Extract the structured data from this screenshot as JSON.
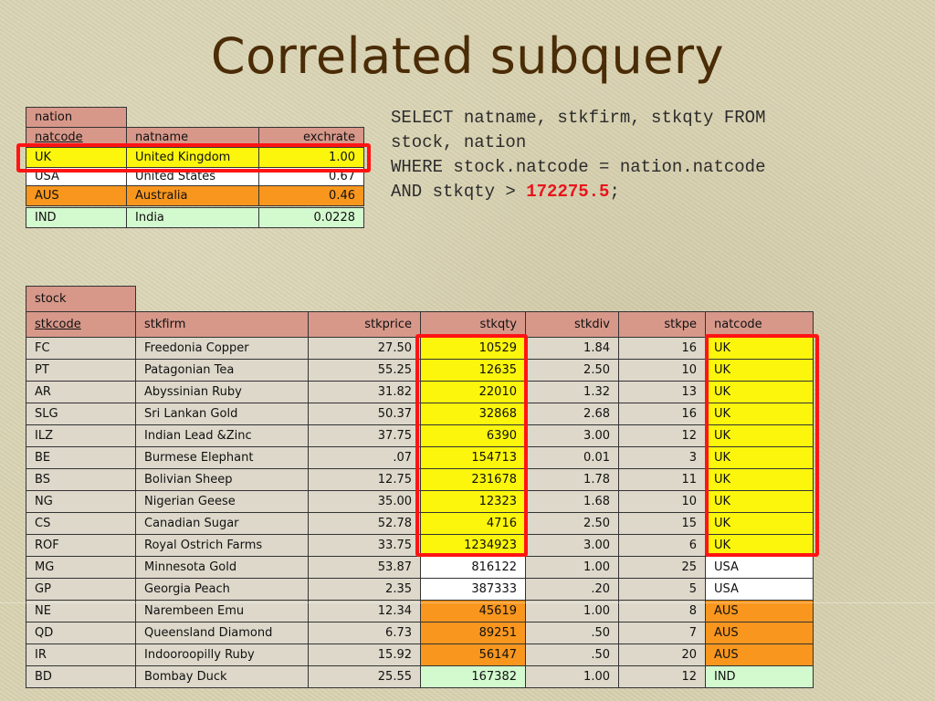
{
  "title": "Correlated subquery",
  "sql": {
    "line1": "SELECT natname, stkfirm, stkqty FROM",
    "line2": "stock, nation",
    "line3": "WHERE stock.natcode = nation.natcode",
    "line4_prefix": "AND stkqty > ",
    "line4_value": "172275.5",
    "line4_suffix": ";"
  },
  "nation_table": {
    "name": "nation",
    "columns": [
      "natcode",
      "natname",
      "exchrate"
    ],
    "rows": [
      {
        "natcode": "UK",
        "natname": "United Kingdom",
        "exchrate": "1.00"
      },
      {
        "natcode": "USA",
        "natname": "United States",
        "exchrate": "0.67"
      },
      {
        "natcode": "AUS",
        "natname": "Australia",
        "exchrate": "0.46"
      },
      {
        "natcode": "IND",
        "natname": "India",
        "exchrate": "0.0228"
      }
    ]
  },
  "stock_table": {
    "name": "stock",
    "columns": [
      "stkcode",
      "stkfirm",
      "stkprice",
      "stkqty",
      "stkdiv",
      "stkpe",
      "natcode"
    ],
    "rows": [
      {
        "stkcode": "FC",
        "stkfirm": "Freedonia Copper",
        "stkprice": "27.50",
        "stkqty": "10529",
        "stkdiv": "1.84",
        "stkpe": "16",
        "natcode": "UK"
      },
      {
        "stkcode": "PT",
        "stkfirm": "Patagonian Tea",
        "stkprice": "55.25",
        "stkqty": "12635",
        "stkdiv": "2.50",
        "stkpe": "10",
        "natcode": "UK"
      },
      {
        "stkcode": "AR",
        "stkfirm": "Abyssinian Ruby",
        "stkprice": "31.82",
        "stkqty": "22010",
        "stkdiv": "1.32",
        "stkpe": "13",
        "natcode": "UK"
      },
      {
        "stkcode": "SLG",
        "stkfirm": "Sri Lankan Gold",
        "stkprice": "50.37",
        "stkqty": "32868",
        "stkdiv": "2.68",
        "stkpe": "16",
        "natcode": "UK"
      },
      {
        "stkcode": "ILZ",
        "stkfirm": "Indian Lead &Zinc",
        "stkprice": "37.75",
        "stkqty": "6390",
        "stkdiv": "3.00",
        "stkpe": "12",
        "natcode": "UK"
      },
      {
        "stkcode": "BE",
        "stkfirm": "Burmese Elephant",
        "stkprice": ".07",
        "stkqty": "154713",
        "stkdiv": "0.01",
        "stkpe": "3",
        "natcode": "UK"
      },
      {
        "stkcode": "BS",
        "stkfirm": "Bolivian Sheep",
        "stkprice": "12.75",
        "stkqty": "231678",
        "stkdiv": "1.78",
        "stkpe": "11",
        "natcode": "UK"
      },
      {
        "stkcode": "NG",
        "stkfirm": "Nigerian Geese",
        "stkprice": "35.00",
        "stkqty": "12323",
        "stkdiv": "1.68",
        "stkpe": "10",
        "natcode": "UK"
      },
      {
        "stkcode": "CS",
        "stkfirm": "Canadian Sugar",
        "stkprice": "52.78",
        "stkqty": "4716",
        "stkdiv": "2.50",
        "stkpe": "15",
        "natcode": "UK"
      },
      {
        "stkcode": "ROF",
        "stkfirm": "Royal Ostrich Farms",
        "stkprice": "33.75",
        "stkqty": "1234923",
        "stkdiv": "3.00",
        "stkpe": "6",
        "natcode": "UK"
      },
      {
        "stkcode": "MG",
        "stkfirm": "Minnesota Gold",
        "stkprice": "53.87",
        "stkqty": "816122",
        "stkdiv": "1.00",
        "stkpe": "25",
        "natcode": "USA"
      },
      {
        "stkcode": "GP",
        "stkfirm": "Georgia Peach",
        "stkprice": "2.35",
        "stkqty": "387333",
        "stkdiv": ".20",
        "stkpe": "5",
        "natcode": "USA"
      },
      {
        "stkcode": "NE",
        "stkfirm": "Narembeen Emu",
        "stkprice": "12.34",
        "stkqty": "45619",
        "stkdiv": "1.00",
        "stkpe": "8",
        "natcode": "AUS"
      },
      {
        "stkcode": "QD",
        "stkfirm": "Queensland Diamond",
        "stkprice": "6.73",
        "stkqty": "89251",
        "stkdiv": ".50",
        "stkpe": "7",
        "natcode": "AUS"
      },
      {
        "stkcode": "IR",
        "stkfirm": "Indooroopilly Ruby",
        "stkprice": "15.92",
        "stkqty": "56147",
        "stkdiv": ".50",
        "stkpe": "20",
        "natcode": "AUS"
      },
      {
        "stkcode": "BD",
        "stkfirm": "Bombay Duck",
        "stkprice": "25.55",
        "stkqty": "167382",
        "stkdiv": "1.00",
        "stkpe": "12",
        "natcode": "IND"
      }
    ]
  },
  "colors": {
    "UK": "#fbf60c",
    "USA": "#ffffff",
    "AUS": "#f8961e",
    "IND": "#d3f9cf",
    "header": "#d7988a",
    "highlight_box": "#ff1414",
    "title": "#4a2c06"
  }
}
